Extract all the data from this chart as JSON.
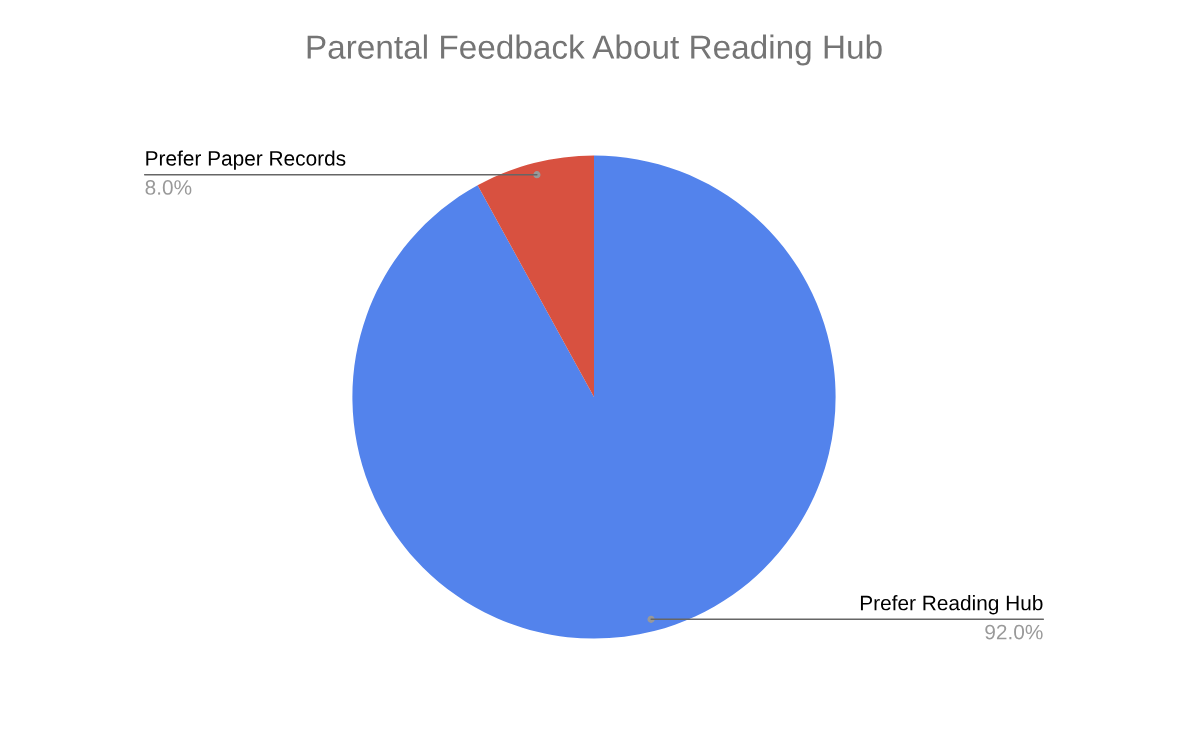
{
  "chart_data": {
    "type": "pie",
    "title": "Parental Feedback About Reading Hub",
    "categories": [
      "Prefer Reading Hub",
      "Prefer Paper Records"
    ],
    "values": [
      92.0,
      8.0
    ],
    "colors": [
      "#5383ec",
      "#d85140"
    ],
    "value_labels": [
      "92.0%",
      "8.0%"
    ],
    "legend": false
  }
}
